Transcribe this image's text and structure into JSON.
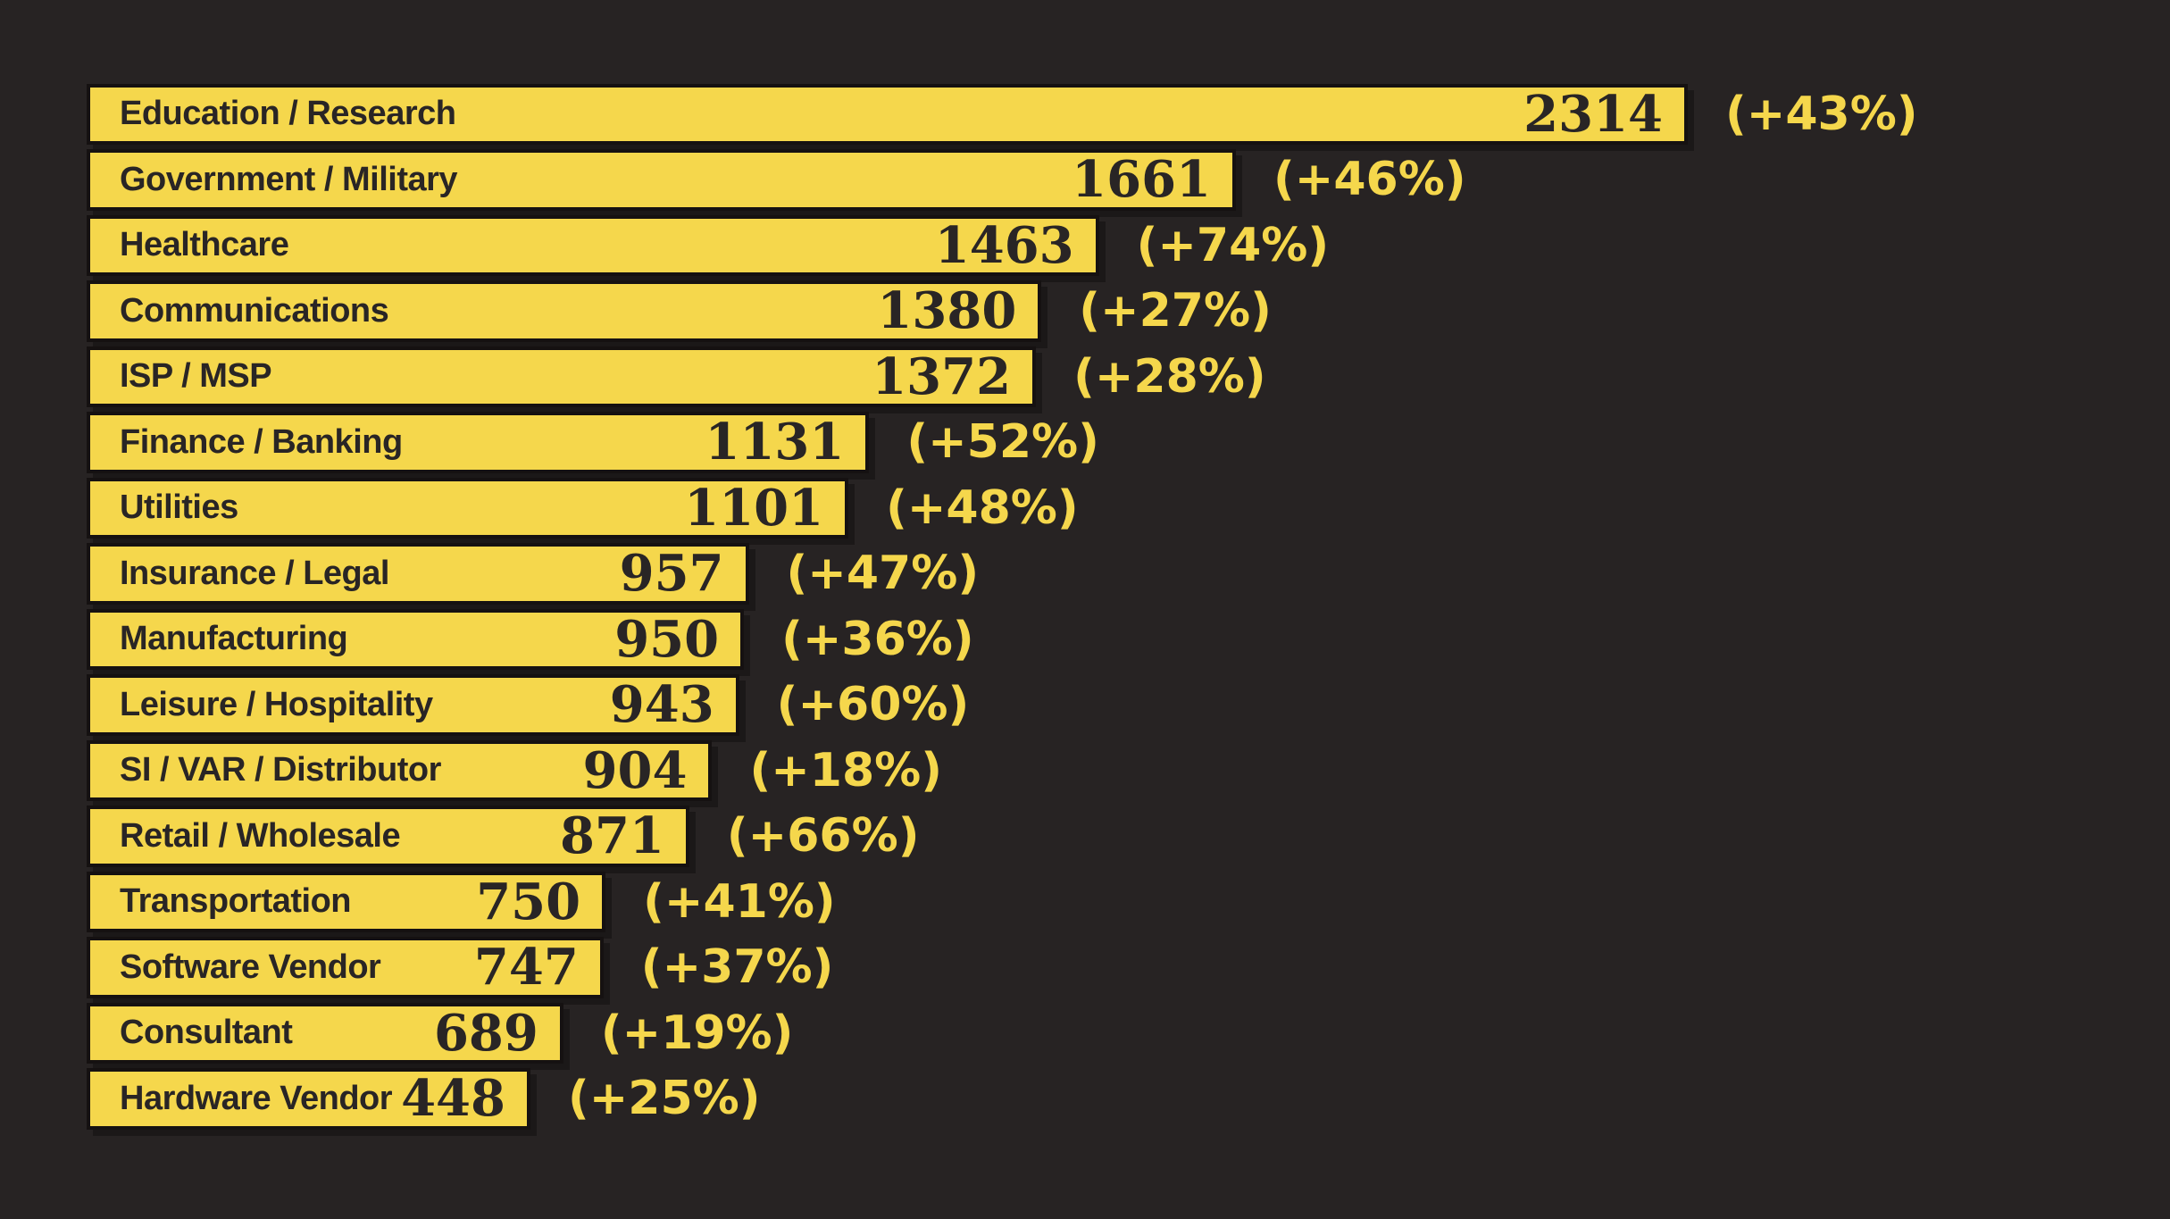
{
  "chart_data": {
    "type": "bar",
    "orientation": "horizontal",
    "title": "",
    "xlabel": "",
    "ylabel": "",
    "grid": false,
    "legend": false,
    "value_axis_max": 2314,
    "categories": [
      "Education / Research",
      "Government / Military",
      "Healthcare",
      "Communications",
      "ISP / MSP",
      "Finance / Banking",
      "Utilities",
      "Insurance / Legal",
      "Manufacturing",
      "Leisure / Hospitality",
      "SI / VAR / Distributor",
      "Retail / Wholesale",
      "Transportation",
      "Software Vendor",
      "Consultant",
      "Hardware Vendor"
    ],
    "values": [
      2314,
      1661,
      1463,
      1380,
      1372,
      1131,
      1101,
      957,
      950,
      943,
      904,
      871,
      750,
      747,
      689,
      448
    ],
    "change_pct": [
      43,
      46,
      74,
      27,
      28,
      52,
      48,
      47,
      36,
      60,
      18,
      66,
      41,
      37,
      19,
      25
    ],
    "change_labels": [
      "(+43%)",
      "(+46%)",
      "(+74%)",
      "(+27%)",
      "(+28%)",
      "(+52%)",
      "(+48%)",
      "(+47%)",
      "(+36%)",
      "(+60%)",
      "(+18%)",
      "(+66%)",
      "(+41%)",
      "(+37%)",
      "(+19%)",
      "(+25%)"
    ],
    "colors": {
      "bar_fill": "#F5D74C",
      "bar_border": "#151111",
      "bar_text": "#292525",
      "change_text": "#F5D74C",
      "background": "#272323"
    }
  }
}
